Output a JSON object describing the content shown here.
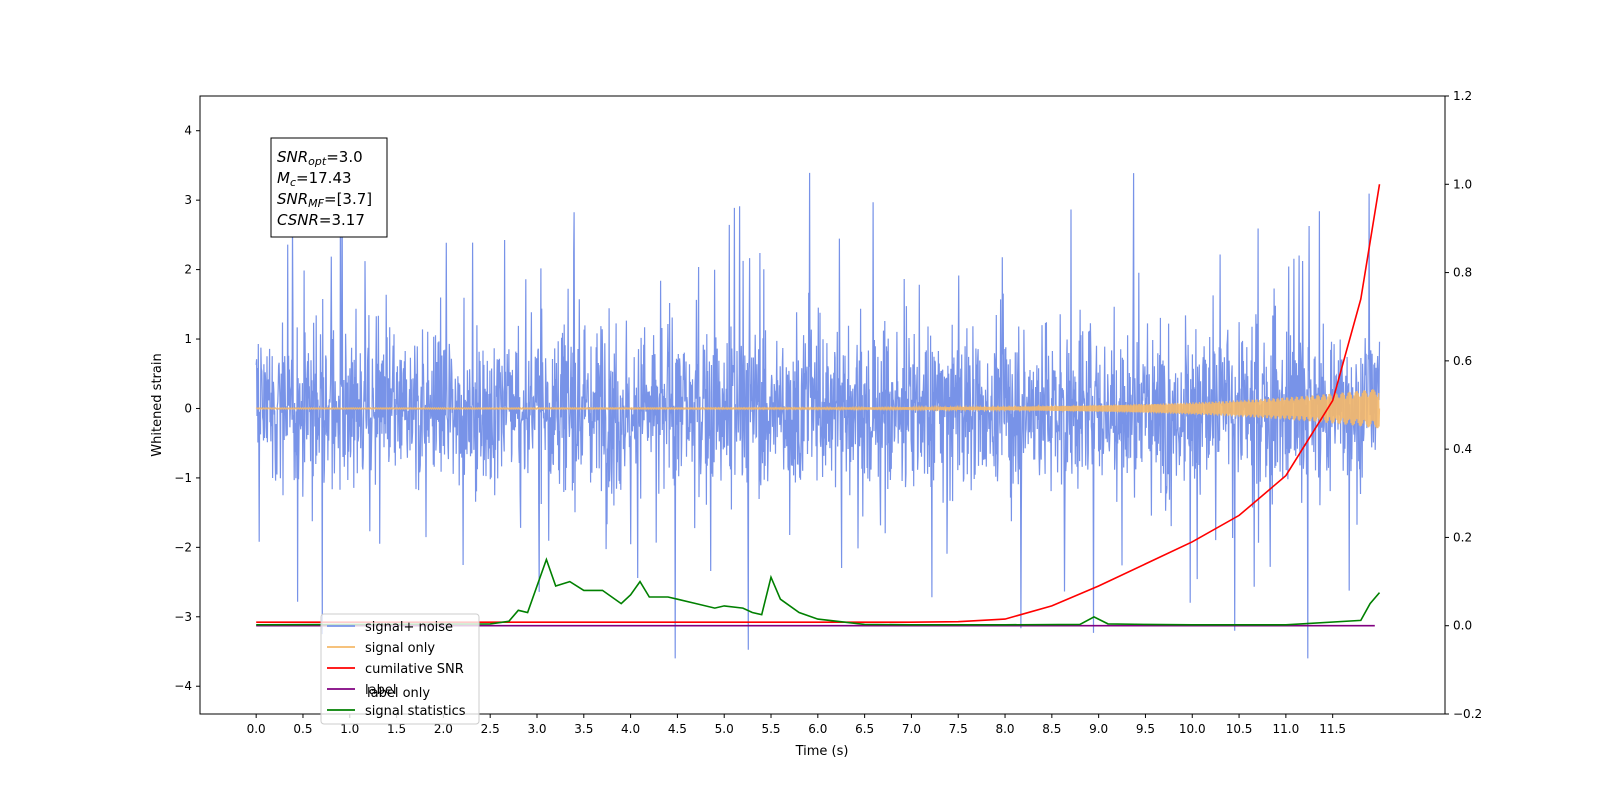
{
  "chart_data": {
    "type": "line",
    "xlabel": "Time (s)",
    "ylabel": "Whitened strain",
    "xlim": [
      -0.6,
      12.7
    ],
    "ylim": [
      -4.4,
      4.5
    ],
    "y2lim": [
      -0.2,
      1.2
    ],
    "x_ticks": [
      "0.0",
      "0.5",
      "1.0",
      "1.5",
      "2.0",
      "2.5",
      "3.0",
      "3.5",
      "4.0",
      "4.5",
      "5.0",
      "5.5",
      "6.0",
      "6.5",
      "7.0",
      "7.5",
      "8.0",
      "8.5",
      "9.0",
      "9.5",
      "10.0",
      "10.5",
      "11.0",
      "11.5"
    ],
    "y_ticks": [
      "4",
      "3",
      "2",
      "1",
      "0",
      "−1",
      "−2",
      "−3",
      "−4"
    ],
    "y2_ticks": [
      "1.2",
      "1.0",
      "0.8",
      "0.6",
      "0.4",
      "0.2",
      "0.0",
      "−0.2"
    ],
    "grid": false,
    "legend_position": "lower-left",
    "annotation": {
      "lines": [
        {
          "name": "SNR",
          "sub": "opt",
          "value": "=3.0"
        },
        {
          "name": "M",
          "sub": "c",
          "value": "=17.43"
        },
        {
          "name": "SNR",
          "sub": "MF",
          "value": "=[3.7]"
        },
        {
          "name": "CSNR",
          "sub": "",
          "value": "=3.17"
        }
      ]
    },
    "series": [
      {
        "name": "signal+ noise",
        "color": "#7893e8",
        "axis": "left",
        "kind": "noise",
        "x_range": [
          0.0,
          12.0
        ],
        "envelope": [
          -3.6,
          4.1
        ]
      },
      {
        "name": "signal only",
        "color": "#f5b96a",
        "axis": "left",
        "kind": "chirp",
        "x_range": [
          0.0,
          12.0
        ],
        "amplitude_end": 0.28
      },
      {
        "name": "cumilative SNR",
        "color": "#ff0000",
        "axis": "right",
        "x": [
          0.0,
          6.0,
          7.0,
          7.5,
          8.0,
          8.5,
          9.0,
          9.5,
          10.0,
          10.5,
          11.0,
          11.5,
          11.8,
          12.0
        ],
        "values": [
          0.008,
          0.008,
          0.008,
          0.009,
          0.015,
          0.045,
          0.09,
          0.14,
          0.19,
          0.25,
          0.34,
          0.51,
          0.74,
          1.0
        ]
      },
      {
        "name": "label",
        "color": "#800080",
        "axis": "right",
        "x": [
          0.0,
          11.95
        ],
        "values": [
          0.0,
          0.0
        ]
      },
      {
        "name": "signal statistics",
        "color": "#008000",
        "axis": "right",
        "x": [
          0.0,
          2.5,
          2.7,
          2.8,
          2.9,
          3.0,
          3.1,
          3.2,
          3.35,
          3.5,
          3.7,
          3.9,
          4.0,
          4.1,
          4.2,
          4.4,
          4.5,
          4.7,
          4.9,
          5.0,
          5.2,
          5.3,
          5.4,
          5.5,
          5.6,
          5.8,
          6.0,
          6.5,
          7.0,
          8.0,
          8.8,
          8.95,
          9.1,
          9.5,
          10.0,
          11.0,
          11.8,
          11.9,
          12.0
        ],
        "values": [
          0.002,
          0.004,
          0.01,
          0.035,
          0.03,
          0.09,
          0.15,
          0.09,
          0.1,
          0.08,
          0.08,
          0.05,
          0.07,
          0.1,
          0.065,
          0.065,
          0.06,
          0.05,
          0.04,
          0.045,
          0.04,
          0.03,
          0.025,
          0.11,
          0.06,
          0.03,
          0.015,
          0.003,
          0.002,
          0.002,
          0.003,
          0.02,
          0.004,
          0.003,
          0.002,
          0.002,
          0.012,
          0.05,
          0.075
        ]
      }
    ],
    "legend": [
      {
        "label": "signal+ noise",
        "color": "#7893e8"
      },
      {
        "label": "signal only",
        "color": "#f5b96a"
      },
      {
        "label": "cumilative SNR",
        "color": "#ff0000"
      },
      {
        "label": "label",
        "color": "#800080"
      },
      {
        "label": "signal statistics",
        "color": "#008000"
      }
    ],
    "legend_ghost_labels": [
      "label only",
      "signal only"
    ]
  }
}
